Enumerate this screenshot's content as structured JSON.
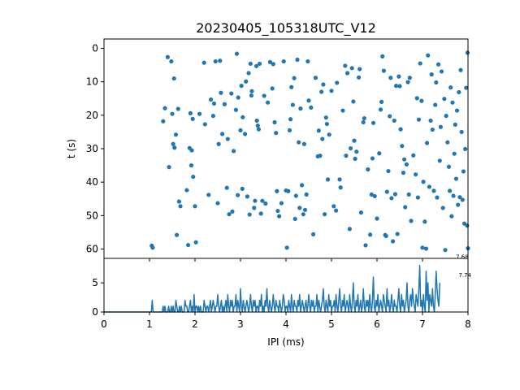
{
  "figure_title": "20230405_105318UTC_V12",
  "colors": {
    "series": "#1f77b4",
    "axes": "#000000",
    "background": "#ffffff"
  },
  "chart_data": [
    {
      "type": "scatter",
      "title": "20230405_105318UTC_V12",
      "xlabel": "",
      "ylabel": "t (s)",
      "xlim": [
        0,
        8
      ],
      "ylim": [
        62.8,
        -2.8
      ],
      "y_inverted": true,
      "y_ticks": [
        0,
        10,
        20,
        30,
        40,
        50,
        60
      ],
      "x_ticks_labeled": false,
      "grid": false,
      "points": [
        [
          1.05,
          59.0
        ],
        [
          1.07,
          59.6
        ],
        [
          1.3,
          21.8
        ],
        [
          1.34,
          17.9
        ],
        [
          1.4,
          2.6
        ],
        [
          1.43,
          35.5
        ],
        [
          1.48,
          3.9
        ],
        [
          1.5,
          19.6
        ],
        [
          1.52,
          28.6
        ],
        [
          1.54,
          9.0
        ],
        [
          1.55,
          29.7
        ],
        [
          1.58,
          25.8
        ],
        [
          1.6,
          55.8
        ],
        [
          1.63,
          18.1
        ],
        [
          1.65,
          45.8
        ],
        [
          1.68,
          47.2
        ],
        [
          1.82,
          42.4
        ],
        [
          1.85,
          58.8
        ],
        [
          1.88,
          29.8
        ],
        [
          1.9,
          19.4
        ],
        [
          1.92,
          35.0
        ],
        [
          1.93,
          30.5
        ],
        [
          1.95,
          21.1
        ],
        [
          1.96,
          38.4
        ],
        [
          2.0,
          47.2
        ],
        [
          2.02,
          58.0
        ],
        [
          2.1,
          19.6
        ],
        [
          2.2,
          4.3
        ],
        [
          2.22,
          22.7
        ],
        [
          2.3,
          43.8
        ],
        [
          2.35,
          15.3
        ],
        [
          2.4,
          20.2
        ],
        [
          2.42,
          16.5
        ],
        [
          2.45,
          3.9
        ],
        [
          2.5,
          46.3
        ],
        [
          2.52,
          28.6
        ],
        [
          2.55,
          3.7
        ],
        [
          2.57,
          13.3
        ],
        [
          2.6,
          25.6
        ],
        [
          2.65,
          16.7
        ],
        [
          2.7,
          41.7
        ],
        [
          2.72,
          27.1
        ],
        [
          2.75,
          49.6
        ],
        [
          2.8,
          13.5
        ],
        [
          2.82,
          48.8
        ],
        [
          2.85,
          30.7
        ],
        [
          2.9,
          18.4
        ],
        [
          2.92,
          1.6
        ],
        [
          2.94,
          43.9
        ],
        [
          2.95,
          14.7
        ],
        [
          3.0,
          24.5
        ],
        [
          3.02,
          11.2
        ],
        [
          3.04,
          42.0
        ],
        [
          3.05,
          20.6
        ],
        [
          3.1,
          25.6
        ],
        [
          3.12,
          9.9
        ],
        [
          3.15,
          44.3
        ],
        [
          3.18,
          7.4
        ],
        [
          3.2,
          49.7
        ],
        [
          3.22,
          4.6
        ],
        [
          3.24,
          14.1
        ],
        [
          3.25,
          12.8
        ],
        [
          3.3,
          47.7
        ],
        [
          3.32,
          45.6
        ],
        [
          3.35,
          5.3
        ],
        [
          3.36,
          21.6
        ],
        [
          3.38,
          23.1
        ],
        [
          3.4,
          24.2
        ],
        [
          3.42,
          4.6
        ],
        [
          3.45,
          49.4
        ],
        [
          3.48,
          45.6
        ],
        [
          3.52,
          14.2
        ],
        [
          3.55,
          46.4
        ],
        [
          3.6,
          16.2
        ],
        [
          3.65,
          4.1
        ],
        [
          3.7,
          12.0
        ],
        [
          3.72,
          4.7
        ],
        [
          3.75,
          22.1
        ],
        [
          3.78,
          25.3
        ],
        [
          3.8,
          42.7
        ],
        [
          3.82,
          48.6
        ],
        [
          3.85,
          50.2
        ],
        [
          3.9,
          46.3
        ],
        [
          3.95,
          3.9
        ],
        [
          4.0,
          42.5
        ],
        [
          4.02,
          59.6
        ],
        [
          4.05,
          42.7
        ],
        [
          4.08,
          24.5
        ],
        [
          4.1,
          21.2
        ],
        [
          4.12,
          11.6
        ],
        [
          4.15,
          16.9
        ],
        [
          4.18,
          8.9
        ],
        [
          4.2,
          51.0
        ],
        [
          4.22,
          44.1
        ],
        [
          4.25,
          3.4
        ],
        [
          4.28,
          28.1
        ],
        [
          4.3,
          47.7
        ],
        [
          4.32,
          18.0
        ],
        [
          4.35,
          40.9
        ],
        [
          4.38,
          49.6
        ],
        [
          4.4,
          28.6
        ],
        [
          4.42,
          48.3
        ],
        [
          4.45,
          43.7
        ],
        [
          4.48,
          3.9
        ],
        [
          4.5,
          15.6
        ],
        [
          4.55,
          17.7
        ],
        [
          4.6,
          55.6
        ],
        [
          4.65,
          8.8
        ],
        [
          4.7,
          32.3
        ],
        [
          4.72,
          24.6
        ],
        [
          4.75,
          32.1
        ],
        [
          4.78,
          13.0
        ],
        [
          4.8,
          27.1
        ],
        [
          4.82,
          10.8
        ],
        [
          4.85,
          49.6
        ],
        [
          4.88,
          20.7
        ],
        [
          4.9,
          22.6
        ],
        [
          4.92,
          39.2
        ],
        [
          4.95,
          25.8
        ],
        [
          5.0,
          12.7
        ],
        [
          5.05,
          47.2
        ],
        [
          5.1,
          48.5
        ],
        [
          5.12,
          10.3
        ],
        [
          5.18,
          39.2
        ],
        [
          5.2,
          41.6
        ],
        [
          5.25,
          18.6
        ],
        [
          5.3,
          5.2
        ],
        [
          5.32,
          32.1
        ],
        [
          5.35,
          7.4
        ],
        [
          5.4,
          54.0
        ],
        [
          5.42,
          29.9
        ],
        [
          5.45,
          5.9
        ],
        [
          5.48,
          15.9
        ],
        [
          5.5,
          27.6
        ],
        [
          5.52,
          33.0
        ],
        [
          5.55,
          30.9
        ],
        [
          5.6,
          8.7
        ],
        [
          5.62,
          6.2
        ],
        [
          5.65,
          49.1
        ],
        [
          5.7,
          22.1
        ],
        [
          5.72,
          20.9
        ],
        [
          5.75,
          58.9
        ],
        [
          5.8,
          36.2
        ],
        [
          5.85,
          55.7
        ],
        [
          5.88,
          43.7
        ],
        [
          5.9,
          32.9
        ],
        [
          5.92,
          22.3
        ],
        [
          5.95,
          44.2
        ],
        [
          6.0,
          50.9
        ],
        [
          6.05,
          31.4
        ],
        [
          6.08,
          18.3
        ],
        [
          6.1,
          16.0
        ],
        [
          6.12,
          2.4
        ],
        [
          6.15,
          6.7
        ],
        [
          6.18,
          55.8
        ],
        [
          6.2,
          56.1
        ],
        [
          6.22,
          42.9
        ],
        [
          6.25,
          36.7
        ],
        [
          6.28,
          20.3
        ],
        [
          6.3,
          8.8
        ],
        [
          6.32,
          44.8
        ],
        [
          6.35,
          57.7
        ],
        [
          6.38,
          21.6
        ],
        [
          6.4,
          43.6
        ],
        [
          6.42,
          11.2
        ],
        [
          6.45,
          55.5
        ],
        [
          6.48,
          8.4
        ],
        [
          6.5,
          11.3
        ],
        [
          6.52,
          24.2
        ],
        [
          6.55,
          29.2
        ],
        [
          6.58,
          37.2
        ],
        [
          6.6,
          33.2
        ],
        [
          6.62,
          47.5
        ],
        [
          6.65,
          34.7
        ],
        [
          6.68,
          10.1
        ],
        [
          6.7,
          43.7
        ],
        [
          6.72,
          8.8
        ],
        [
          6.75,
          51.6
        ],
        [
          6.8,
          32.0
        ],
        [
          6.85,
          37.7
        ],
        [
          6.88,
          14.9
        ],
        [
          6.9,
          44.6
        ],
        [
          6.92,
          21.3
        ],
        [
          6.95,
          4.5
        ],
        [
          6.98,
          15.7
        ],
        [
          7.0,
          59.6
        ],
        [
          7.02,
          39.9
        ],
        [
          7.05,
          51.8
        ],
        [
          7.08,
          59.9
        ],
        [
          7.1,
          28.3
        ],
        [
          7.12,
          2.1
        ],
        [
          7.15,
          41.4
        ],
        [
          7.18,
          21.6
        ],
        [
          7.2,
          7.8
        ],
        [
          7.22,
          24.3
        ],
        [
          7.25,
          42.6
        ],
        [
          7.28,
          16.9
        ],
        [
          7.3,
          10.2
        ],
        [
          7.32,
          44.6
        ],
        [
          7.35,
          4.8
        ],
        [
          7.38,
          33.6
        ],
        [
          7.4,
          23.5
        ],
        [
          7.42,
          6.9
        ],
        [
          7.45,
          47.7
        ],
        [
          7.48,
          15.1
        ],
        [
          7.5,
          60.3
        ],
        [
          7.52,
          20.2
        ],
        [
          7.55,
          28.1
        ],
        [
          7.58,
          35.4
        ],
        [
          7.6,
          42.6
        ],
        [
          7.62,
          11.7
        ],
        [
          7.64,
          50.2
        ],
        [
          7.66,
          16.2
        ],
        [
          7.68,
          44.1
        ],
        [
          7.7,
          31.5
        ],
        [
          7.72,
          22.8
        ],
        [
          7.74,
          39.0
        ],
        [
          7.76,
          18.6
        ],
        [
          7.78,
          46.8
        ],
        [
          7.8,
          13.1
        ],
        [
          7.82,
          44.5
        ],
        [
          7.84,
          6.5
        ],
        [
          7.86,
          25.0
        ],
        [
          7.88,
          45.3
        ],
        [
          7.9,
          36.8
        ],
        [
          7.92,
          52.4
        ],
        [
          7.94,
          30.1
        ],
        [
          7.96,
          11.8
        ],
        [
          7.98,
          53.0
        ],
        [
          7.99,
          1.3
        ],
        [
          8.0,
          59.8
        ]
      ]
    },
    {
      "type": "line",
      "title": "",
      "xlabel": "IPI (ms)",
      "ylabel": "",
      "xlim": [
        0,
        8
      ],
      "ylim": [
        0,
        9.2
      ],
      "x_ticks": [
        0,
        1,
        2,
        3,
        4,
        5,
        6,
        7,
        8
      ],
      "y_ticks": [
        0,
        5
      ],
      "grid": false,
      "bin_width": 0.02,
      "series": [
        {
          "values": [
            0,
            0,
            0,
            0,
            0,
            0,
            0,
            0,
            0,
            0,
            0,
            0,
            0,
            0,
            0,
            0,
            0,
            0,
            0,
            0,
            0,
            0,
            0,
            0,
            0,
            0,
            0,
            0,
            0,
            0,
            0,
            0,
            0,
            0,
            0,
            0,
            0,
            0,
            0,
            0,
            0,
            0,
            0,
            0,
            0,
            0,
            0,
            0,
            0,
            0,
            0,
            0,
            0,
            2,
            0,
            0,
            0,
            0,
            0,
            0,
            0,
            0,
            0,
            0,
            0,
            1,
            0,
            1,
            0,
            0,
            0,
            1,
            0,
            0,
            1,
            0,
            1,
            0,
            0,
            2,
            1,
            0,
            0,
            1,
            0,
            1,
            0,
            0,
            0,
            2,
            1,
            1,
            0,
            0,
            1,
            2,
            0,
            1,
            0,
            3,
            0,
            1,
            1,
            0,
            1,
            0,
            1,
            0,
            0,
            0,
            2,
            1,
            0,
            1,
            1,
            0,
            1,
            2,
            0,
            1,
            2,
            1,
            0,
            1,
            1,
            3,
            1,
            0,
            1,
            2,
            0,
            1,
            0,
            1,
            2,
            0,
            3,
            1,
            0,
            2,
            1,
            2,
            0,
            1,
            1,
            3,
            0,
            2,
            1,
            0,
            4,
            1,
            0,
            2,
            1,
            0,
            1,
            2,
            1,
            0,
            1,
            3,
            1,
            0,
            2,
            1,
            2,
            0,
            1,
            1,
            0,
            2,
            1,
            3,
            0,
            1,
            0,
            2,
            1,
            4,
            1,
            0,
            2,
            1,
            0,
            1,
            3,
            1,
            0,
            2,
            1,
            1,
            0,
            2,
            1,
            0,
            1,
            3,
            2,
            0,
            1,
            1,
            0,
            2,
            1,
            0,
            3,
            1,
            0,
            2,
            1,
            1,
            0,
            2,
            1,
            3,
            0,
            1,
            2,
            1,
            0,
            1,
            2,
            0,
            1,
            3,
            1,
            0,
            2,
            1,
            2,
            0,
            1,
            1,
            3,
            0,
            2,
            1,
            0,
            1,
            2,
            4,
            1,
            0,
            2,
            1,
            0,
            3,
            1,
            2,
            0,
            1,
            1,
            2,
            0,
            3,
            1,
            0,
            2,
            4,
            1,
            0,
            2,
            1,
            3,
            0,
            1,
            2,
            1,
            0,
            3,
            1,
            0,
            2,
            5,
            1,
            0,
            2,
            1,
            3,
            0,
            1,
            2,
            0,
            1,
            4,
            1,
            0,
            2,
            1,
            2,
            0,
            3,
            1,
            0,
            2,
            6,
            1,
            0,
            2,
            1,
            3,
            0,
            1,
            2,
            1,
            0,
            3,
            2,
            1,
            0,
            4,
            1,
            2,
            0,
            1,
            3,
            1,
            0,
            2,
            1,
            1,
            0,
            2,
            4,
            1,
            0,
            3,
            1,
            2,
            0,
            1,
            2,
            5,
            1,
            0,
            2,
            3,
            1,
            4,
            2,
            1,
            0,
            3,
            2,
            1,
            4,
            8,
            1,
            2,
            0,
            3,
            1,
            0,
            7,
            2,
            5,
            0,
            3,
            2,
            1,
            4,
            1,
            0,
            3,
            7,
            4,
            2,
            1,
            5
          ]
        }
      ],
      "annotations": [
        {
          "text": "7.68",
          "x": 7.68,
          "y": 9.1
        },
        {
          "text": "7.74",
          "x": 7.74,
          "y": 6.0
        }
      ]
    }
  ]
}
